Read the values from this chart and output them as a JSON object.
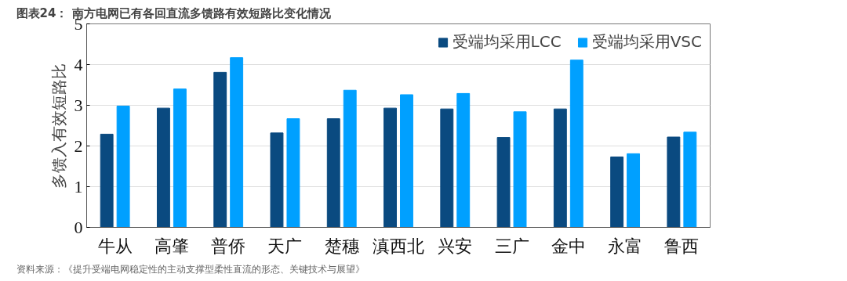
{
  "chart_data": {
    "type": "bar",
    "title": "图表24：  南方电网已有各回直流多馈路有效短路比变化情况",
    "ylabel": "多馈入有效短路比",
    "categories": [
      "牛从",
      "高肇",
      "普侨",
      "天广",
      "楚穗",
      "滇西北",
      "兴安",
      "三广",
      "金中",
      "永富",
      "鲁西"
    ],
    "series": [
      {
        "name": "受端均采用LCC",
        "color": "#0a4a80",
        "values": [
          2.29,
          2.93,
          3.81,
          2.32,
          2.67,
          2.93,
          2.91,
          2.21,
          2.91,
          1.73,
          2.22
        ]
      },
      {
        "name": "受端均采用VSC",
        "color": "#00a0ff",
        "values": [
          2.98,
          3.4,
          4.17,
          2.67,
          3.37,
          3.26,
          3.29,
          2.84,
          4.11,
          1.81,
          2.34
        ]
      }
    ],
    "ylim": [
      0,
      5
    ],
    "yticks": [
      0,
      1,
      2,
      3,
      4,
      5
    ],
    "grid": "y",
    "legend": "top right",
    "annotations": [
      "资料来源：《提升受端电网稳定性的主动支撑型柔性直流的形态、关键技术与展望》"
    ]
  }
}
